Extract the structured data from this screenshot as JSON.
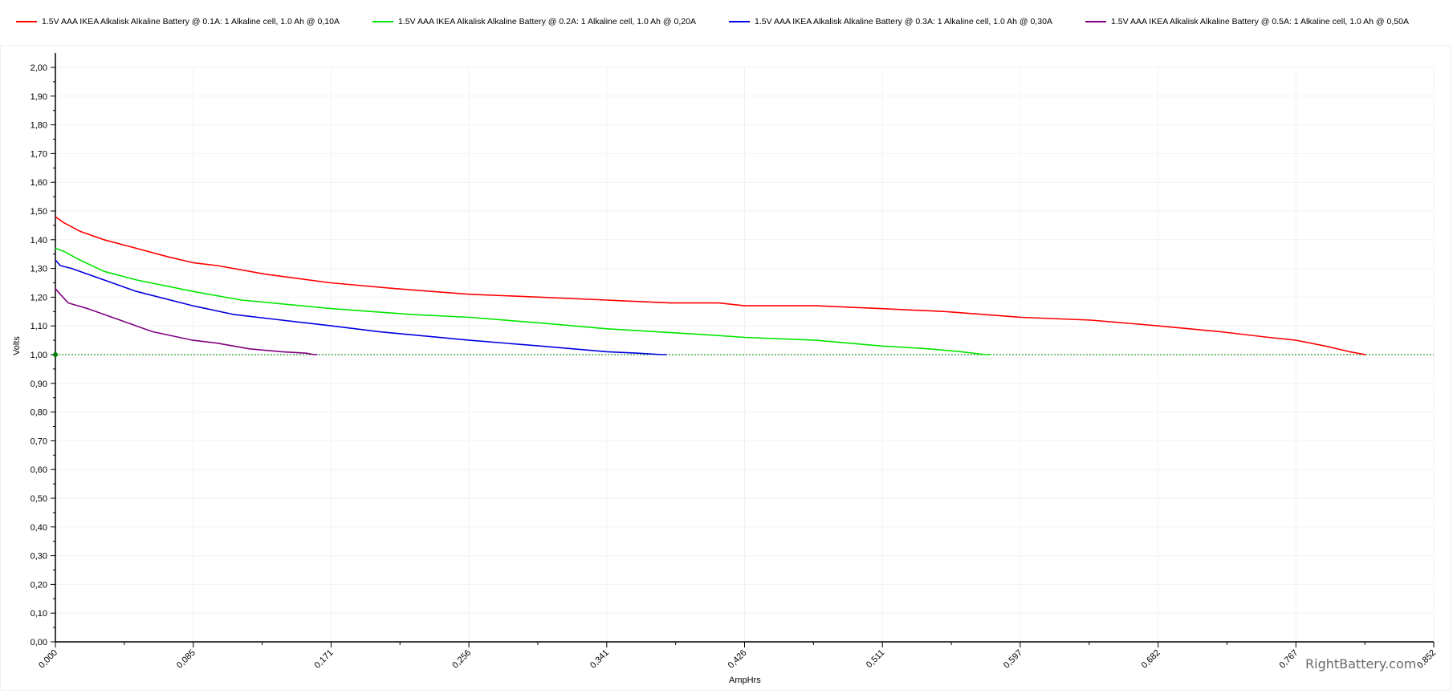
{
  "chart_data": {
    "type": "line",
    "title": "",
    "xlabel": "AmpHrs",
    "ylabel": "Volts",
    "xlim": [
      0,
      0.852
    ],
    "ylim": [
      0,
      2.0
    ],
    "x_ticks": [
      "0,000",
      "0,085",
      "0,171",
      "0,256",
      "0,341",
      "0,426",
      "0,511",
      "0,597",
      "0,682",
      "0,767",
      "0,852"
    ],
    "y_ticks": [
      "0,00",
      "0,10",
      "0,20",
      "0,30",
      "0,40",
      "0,50",
      "0,60",
      "0,70",
      "0,80",
      "0,90",
      "1,00",
      "1,10",
      "1,20",
      "1,30",
      "1,40",
      "1,50",
      "1,60",
      "1,70",
      "1,80",
      "1,90",
      "2,00"
    ],
    "grid": true,
    "legend_placement": "top",
    "cutoff_line": {
      "y": 1.0,
      "color": "#008000"
    },
    "series": [
      {
        "name": "1.5V AAA IKEA Alkalisk Alkaline Battery @ 0.1A: 1 Alkaline cell, 1.0 Ah @ 0,10A",
        "color": "#ff0000",
        "x": [
          0.0,
          0.005,
          0.015,
          0.03,
          0.05,
          0.07,
          0.085,
          0.1,
          0.13,
          0.17,
          0.21,
          0.256,
          0.3,
          0.341,
          0.38,
          0.41,
          0.426,
          0.47,
          0.511,
          0.55,
          0.597,
          0.64,
          0.682,
          0.72,
          0.75,
          0.767,
          0.785,
          0.8,
          0.81
        ],
        "y": [
          1.48,
          1.46,
          1.43,
          1.4,
          1.37,
          1.34,
          1.32,
          1.31,
          1.28,
          1.25,
          1.23,
          1.21,
          1.2,
          1.19,
          1.18,
          1.18,
          1.17,
          1.17,
          1.16,
          1.15,
          1.13,
          1.12,
          1.1,
          1.08,
          1.06,
          1.05,
          1.03,
          1.01,
          1.0
        ]
      },
      {
        "name": "1.5V AAA IKEA Alkalisk Alkaline Battery @ 0.2A: 1 Alkaline cell, 1.0 Ah @ 0,20A",
        "color": "#00e600",
        "x": [
          0.0,
          0.005,
          0.015,
          0.03,
          0.05,
          0.085,
          0.115,
          0.171,
          0.22,
          0.256,
          0.3,
          0.341,
          0.4,
          0.426,
          0.47,
          0.511,
          0.54,
          0.56,
          0.575,
          0.578
        ],
        "y": [
          1.37,
          1.36,
          1.33,
          1.29,
          1.26,
          1.22,
          1.19,
          1.16,
          1.14,
          1.13,
          1.11,
          1.09,
          1.07,
          1.06,
          1.05,
          1.03,
          1.02,
          1.01,
          1.0,
          1.0
        ]
      },
      {
        "name": "1.5V AAA IKEA Alkalisk Alkaline Battery @ 0.3A: 1 Alkaline cell, 1.0 Ah @ 0,30A",
        "color": "#0000e0",
        "x": [
          0.0,
          0.003,
          0.01,
          0.03,
          0.05,
          0.085,
          0.11,
          0.14,
          0.171,
          0.2,
          0.256,
          0.3,
          0.341,
          0.36,
          0.375,
          0.378
        ],
        "y": [
          1.33,
          1.31,
          1.3,
          1.26,
          1.22,
          1.17,
          1.14,
          1.12,
          1.1,
          1.08,
          1.05,
          1.03,
          1.01,
          1.005,
          1.0,
          1.0
        ]
      },
      {
        "name": "1.5V AAA IKEA Alkalisk Alkaline Battery @ 0.5A: 1 Alkaline cell, 1.0 Ah @ 0,50A",
        "color": "#800080",
        "x": [
          0.0,
          0.003,
          0.008,
          0.02,
          0.04,
          0.06,
          0.085,
          0.1,
          0.12,
          0.14,
          0.155,
          0.16,
          0.162
        ],
        "y": [
          1.23,
          1.21,
          1.18,
          1.16,
          1.12,
          1.08,
          1.05,
          1.04,
          1.02,
          1.01,
          1.005,
          1.0,
          1.0
        ]
      }
    ]
  },
  "watermark": "RightBattery.com"
}
